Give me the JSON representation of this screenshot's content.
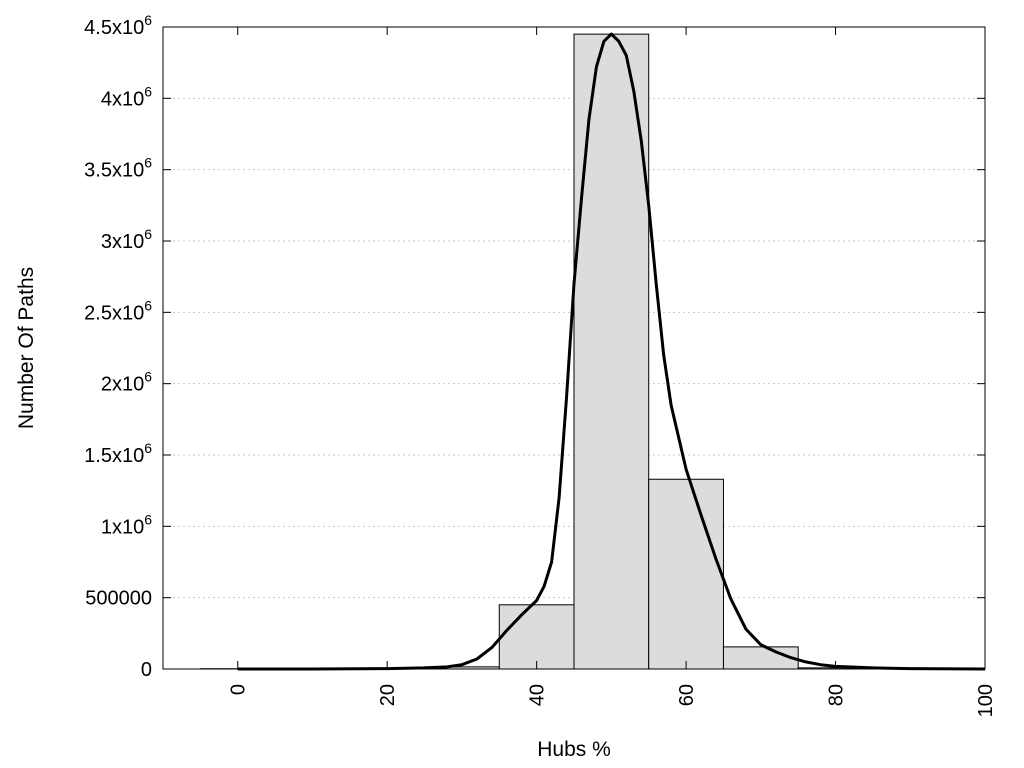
{
  "chart_data": {
    "type": "bar",
    "xlabel": "Hubs %",
    "ylabel": "Number Of Paths",
    "xlim": [
      -10,
      100
    ],
    "ylim": [
      0,
      4500000
    ],
    "x_ticks": [
      0,
      20,
      40,
      60,
      80,
      100
    ],
    "y_ticks": [
      {
        "value": 0,
        "label": "0"
      },
      {
        "value": 500000,
        "label": "500000"
      },
      {
        "value": 1000000,
        "label": "1x10",
        "exp": "6"
      },
      {
        "value": 1500000,
        "label": "1.5x10",
        "exp": "6"
      },
      {
        "value": 2000000,
        "label": "2x10",
        "exp": "6"
      },
      {
        "value": 2500000,
        "label": "2.5x10",
        "exp": "6"
      },
      {
        "value": 3000000,
        "label": "3x10",
        "exp": "6"
      },
      {
        "value": 3500000,
        "label": "3.5x10",
        "exp": "6"
      },
      {
        "value": 4000000,
        "label": "4x10",
        "exp": "6"
      },
      {
        "value": 4500000,
        "label": "4.5x10",
        "exp": "6"
      }
    ],
    "grid": "horizontal dotted",
    "bars": [
      {
        "x0": -5,
        "x1": 5,
        "value": 2000
      },
      {
        "x0": 5,
        "x1": 15,
        "value": 3000
      },
      {
        "x0": 15,
        "x1": 25,
        "value": 5000
      },
      {
        "x0": 25,
        "x1": 35,
        "value": 15000
      },
      {
        "x0": 35,
        "x1": 45,
        "value": 450000
      },
      {
        "x0": 45,
        "x1": 55,
        "value": 4450000
      },
      {
        "x0": 55,
        "x1": 65,
        "value": 1330000
      },
      {
        "x0": 65,
        "x1": 75,
        "value": 155000
      },
      {
        "x0": 75,
        "x1": 85,
        "value": 8000
      },
      {
        "x0": 85,
        "x1": 95,
        "value": 2000
      }
    ],
    "curve": {
      "x": [
        0,
        10,
        20,
        25,
        28,
        30,
        32,
        34,
        36,
        38,
        40,
        41,
        42,
        43,
        44,
        45,
        46,
        47,
        48,
        49,
        50,
        51,
        52,
        53,
        54,
        55,
        56,
        57,
        58,
        60,
        62,
        64,
        66,
        68,
        70,
        72,
        74,
        76,
        78,
        80,
        85,
        90,
        100
      ],
      "y": [
        0,
        0,
        3000,
        8000,
        15000,
        30000,
        70000,
        150000,
        270000,
        380000,
        480000,
        580000,
        750000,
        1200000,
        1900000,
        2700000,
        3300000,
        3850000,
        4220000,
        4400000,
        4450000,
        4400000,
        4300000,
        4050000,
        3700000,
        3250000,
        2700000,
        2200000,
        1850000,
        1400000,
        1080000,
        770000,
        490000,
        280000,
        170000,
        120000,
        80000,
        50000,
        30000,
        18000,
        8000,
        3000,
        0
      ]
    }
  }
}
